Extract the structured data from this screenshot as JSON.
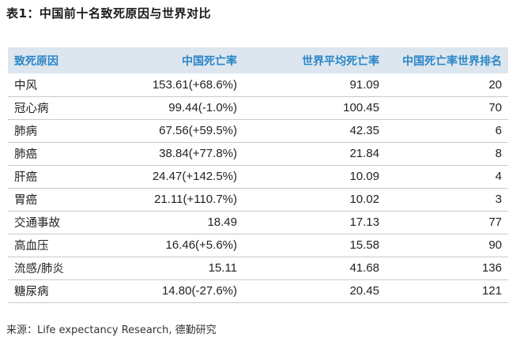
{
  "title": "表1：中国前十名致死原因与世界对比",
  "table": {
    "headers": [
      "致死原因",
      "中国死亡率",
      "世界平均死亡率",
      "中国死亡率世界排名"
    ],
    "rows": [
      [
        "中风",
        "153.61(+68.6%)",
        "91.09",
        "20"
      ],
      [
        "冠心病",
        "99.44(-1.0%)",
        "100.45",
        "70"
      ],
      [
        "肺病",
        "67.56(+59.5%)",
        "42.35",
        "6"
      ],
      [
        "肺癌",
        "38.84(+77.8%)",
        "21.84",
        "8"
      ],
      [
        "肝癌",
        "24.47(+142.5%)",
        "10.09",
        "4"
      ],
      [
        "胃癌",
        "21.11(+110.7%)",
        "10.02",
        "3"
      ],
      [
        "交通事故",
        "18.49",
        "17.13",
        "77"
      ],
      [
        "高血压",
        "16.46(+5.6%)",
        "15.58",
        "90"
      ],
      [
        "流感/肺炎",
        "15.11",
        "41.68",
        "136"
      ],
      [
        "糖尿病",
        "14.80(-27.6%)",
        "20.45",
        "121"
      ]
    ]
  },
  "source": "来源：Life expectancy Research, 德勤研究",
  "colors": {
    "header_bg": "#dde6ee",
    "header_text": "#2a86c8"
  }
}
